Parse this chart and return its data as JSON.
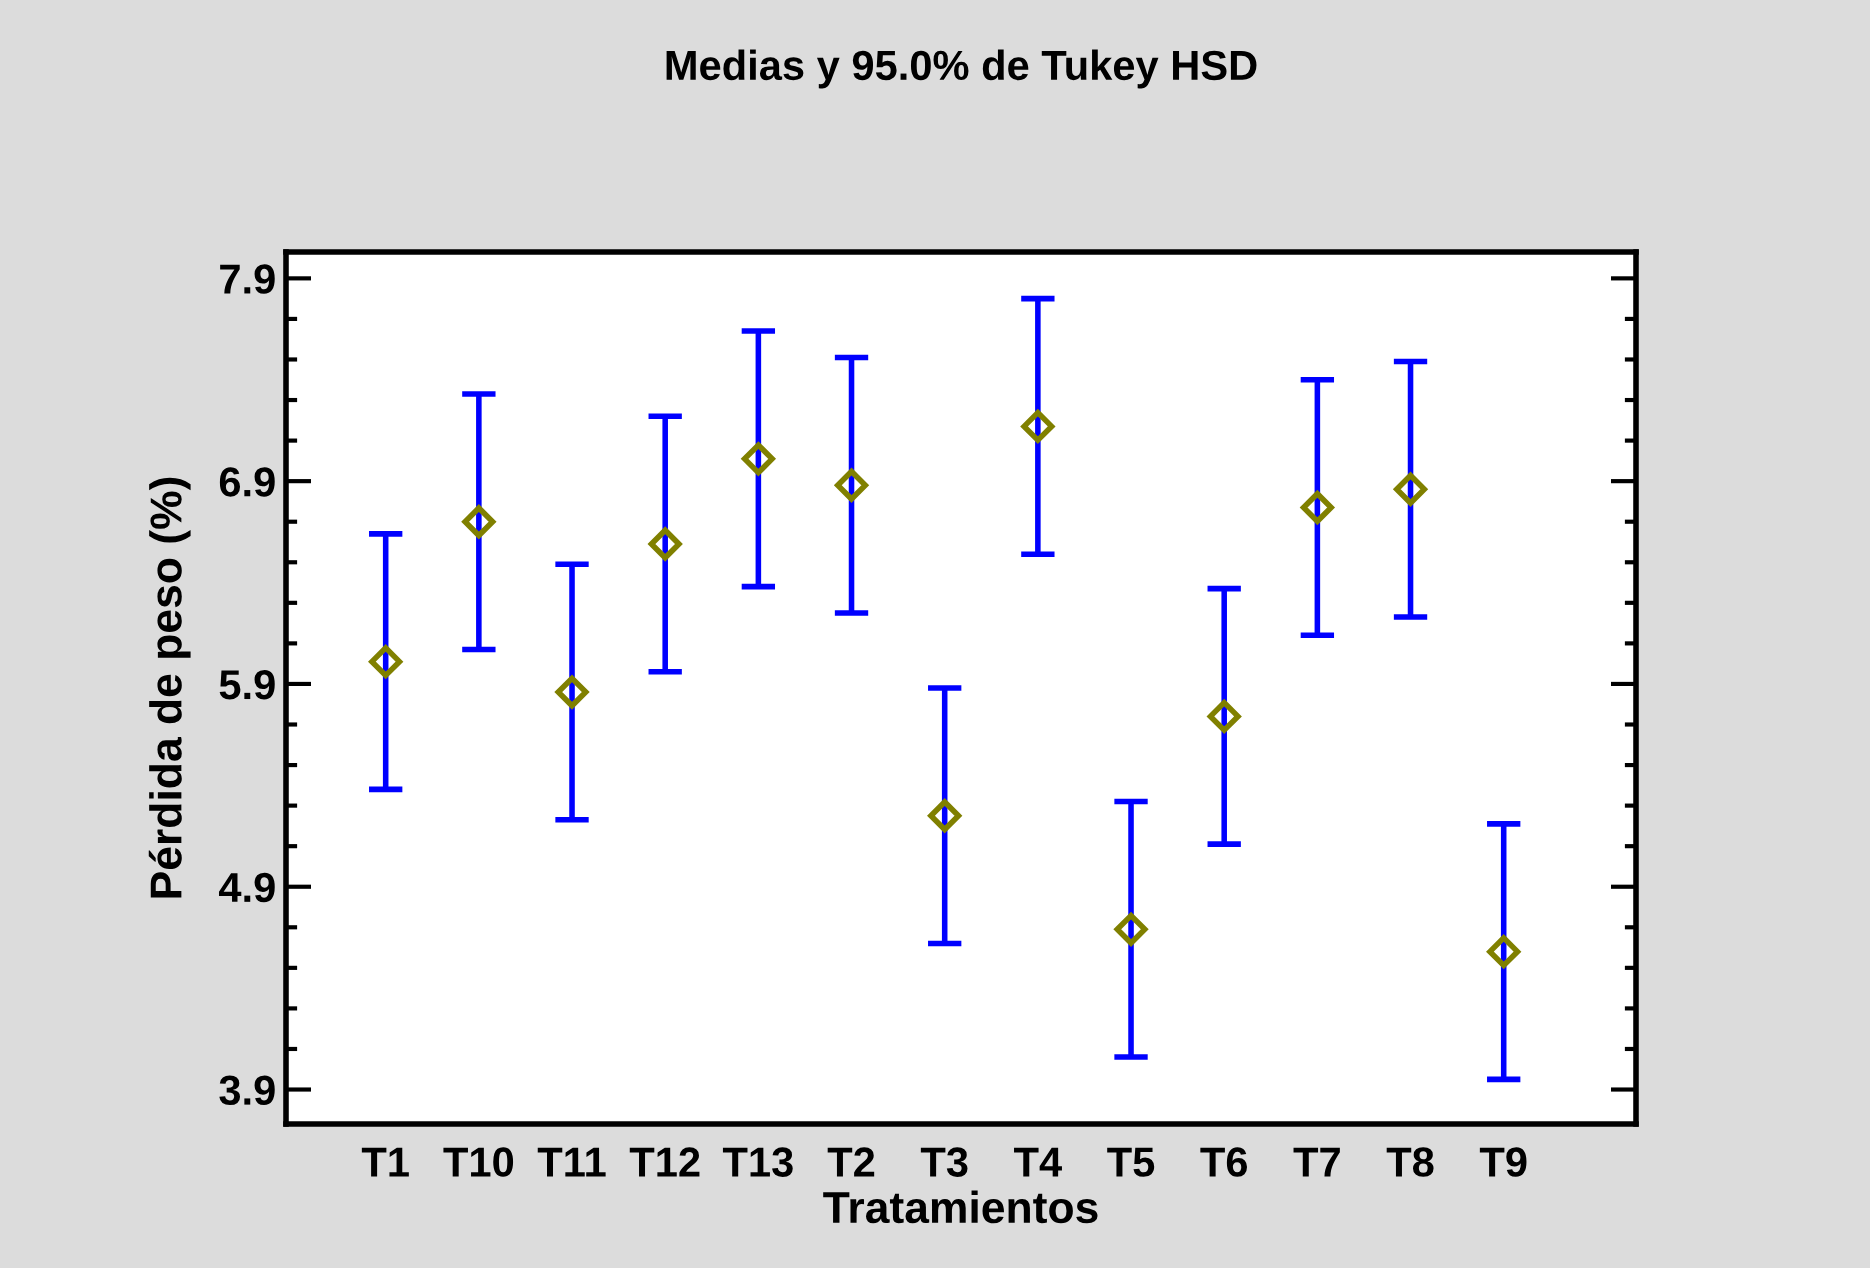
{
  "chart_data": {
    "type": "scatter",
    "title": "Medias y 95.0% de Tukey HSD",
    "xlabel": "Tratamientos",
    "ylabel": "Pérdida de peso (%)",
    "categories": [
      "T1",
      "T10",
      "T11",
      "T12",
      "T13",
      "T2",
      "T3",
      "T4",
      "T5",
      "T6",
      "T7",
      "T8",
      "T9"
    ],
    "series": [
      {
        "color": "#808000",
        "values": [
          6.01,
          6.7,
          5.86,
          6.59,
          7.01,
          6.88,
          5.25,
          7.17,
          4.69,
          5.74,
          6.77,
          6.86,
          4.58
        ],
        "errors": [
          0.63,
          0.63,
          0.63,
          0.63,
          0.63,
          0.63,
          0.63,
          0.63,
          0.63,
          0.63,
          0.63,
          0.63,
          0.63
        ]
      }
    ],
    "marker": "diamond",
    "grid": false,
    "legend": false,
    "ylim": [
      3.73,
      8.03
    ],
    "yticks": [
      3.9,
      {
        "value": 4.1,
        "label": null
      },
      {
        "value": 4.3,
        "label": null
      },
      {
        "value": 4.5,
        "label": null
      },
      {
        "value": 4.7,
        "label": null
      },
      4.9,
      {
        "value": 5.1,
        "label": null
      },
      {
        "value": 5.3,
        "label": null
      },
      {
        "value": 5.5,
        "label": null
      },
      {
        "value": 5.7,
        "label": null
      },
      5.9,
      {
        "value": 6.1,
        "label": null
      },
      {
        "value": 6.3,
        "label": null
      },
      {
        "value": 6.5,
        "label": null
      },
      {
        "value": 6.7,
        "label": null
      },
      6.9,
      {
        "value": 7.1,
        "label": null
      },
      {
        "value": 7.3,
        "label": null
      },
      {
        "value": 7.5,
        "label": null
      },
      {
        "value": 7.7,
        "label": null
      },
      7.9
    ]
  }
}
